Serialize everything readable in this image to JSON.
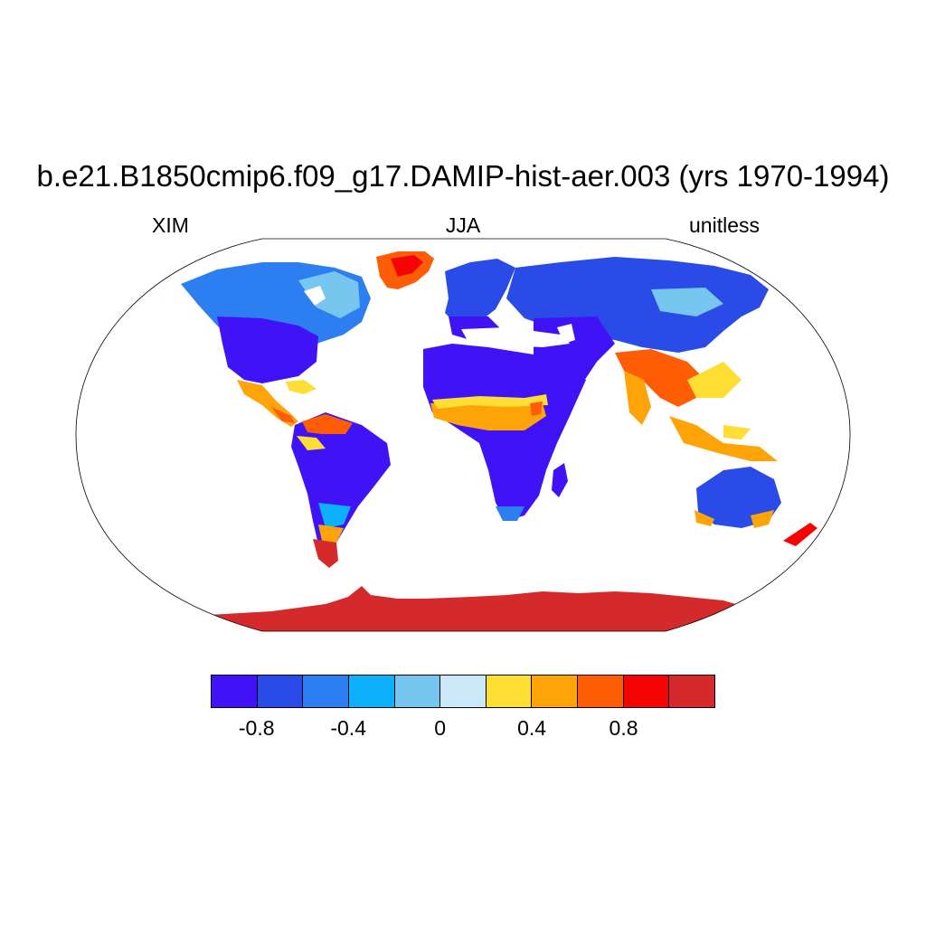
{
  "title": "b.e21.B1850cmip6.f09_g17.DAMIP-hist-aer.003 (yrs 1970-1994)",
  "left_label": "XIM",
  "center_label": "JJA",
  "right_label": "unitless",
  "colorbar": {
    "colors": [
      "#3f13f6",
      "#2b4be8",
      "#2d7ef0",
      "#0db0fa",
      "#77c6f0",
      "#cbe8f8",
      "#fedd35",
      "#fea408",
      "#fe5d06",
      "#f50404",
      "#d42a2b"
    ],
    "labels": [
      "-0.8",
      "-0.4",
      "0",
      "0.4",
      "0.8"
    ]
  },
  "map": {
    "projection": "Robinson",
    "ocean_color": "#ffffff",
    "coastline_color": "#000000"
  }
}
